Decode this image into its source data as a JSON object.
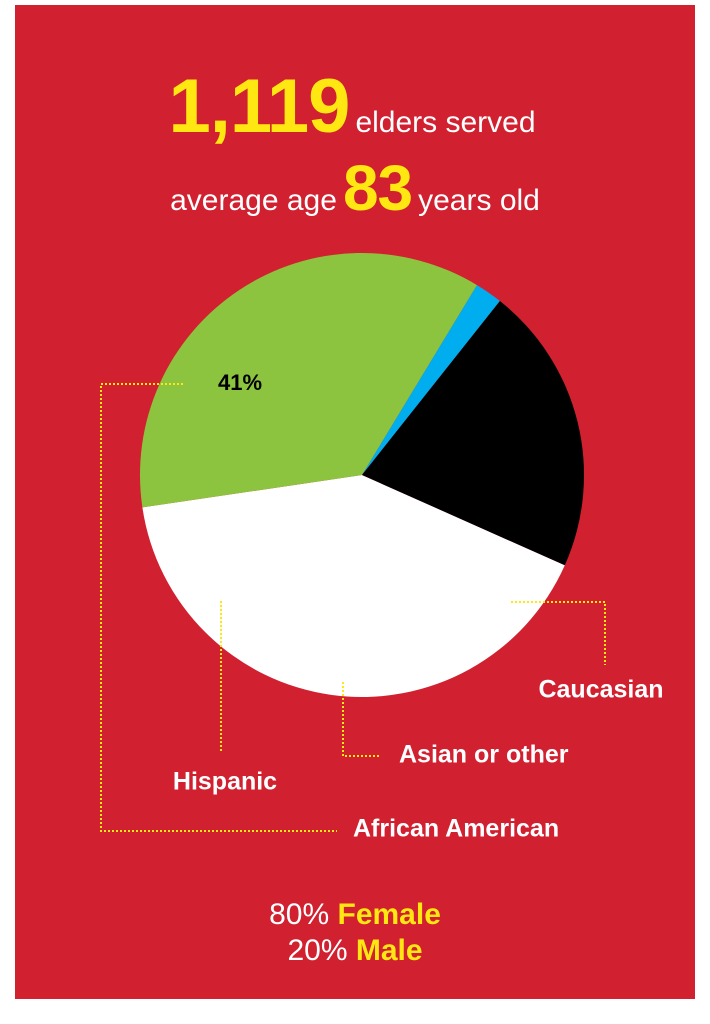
{
  "headline": {
    "elders_count": "1,119",
    "elders_text": "elders served",
    "age_prefix": "average age",
    "age_value": "83",
    "age_suffix": "years old"
  },
  "chart_data": {
    "type": "pie",
    "slices": [
      {
        "label": "African American",
        "value": 41,
        "value_label": "41%",
        "color": "#ffffff",
        "value_color": "#000000"
      },
      {
        "label": "Caucasian",
        "value": 36,
        "value_label": "36%",
        "color": "#8cc43f",
        "value_color": "#ffffff"
      },
      {
        "label": "Asian or other",
        "value": 2,
        "value_label": "2%",
        "color": "#00aeef",
        "value_color": "#ffffff"
      },
      {
        "label": "Hispanic",
        "value": 21,
        "value_label": "21%",
        "color": "#000000",
        "value_color": "#ffffff"
      }
    ],
    "leader_color": "#ffe812",
    "label_color": "#ffffff"
  },
  "gender": {
    "female_pct": "80%",
    "female_label": "Female",
    "male_pct": "20%",
    "male_label": "Male"
  }
}
